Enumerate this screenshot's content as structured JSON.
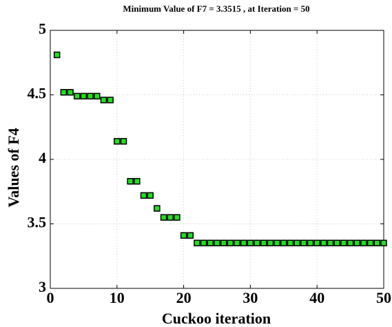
{
  "chart_data": {
    "type": "scatter",
    "title": "Minimum Value of F7 = 3.3515 , at Iteration = 50",
    "x_label": "Cuckoo iteration",
    "y_label": "Values of F4",
    "color": "#22dd22",
    "x": [
      1,
      2,
      3,
      4,
      5,
      6,
      7,
      8,
      9,
      10,
      11,
      12,
      13,
      14,
      15,
      16,
      17,
      18,
      19,
      20,
      21,
      22,
      23,
      24,
      25,
      26,
      27,
      28,
      29,
      30,
      31,
      32,
      33,
      34,
      35,
      36,
      37,
      38,
      39,
      40,
      41,
      42,
      43,
      44,
      45,
      46,
      47,
      48,
      49,
      50
    ],
    "values": [
      4.81,
      4.52,
      4.52,
      4.49,
      4.49,
      4.49,
      4.49,
      4.46,
      4.46,
      4.14,
      4.14,
      3.83,
      3.83,
      3.72,
      3.72,
      3.62,
      3.55,
      3.55,
      3.55,
      3.41,
      3.41,
      3.3515,
      3.3515,
      3.3515,
      3.3515,
      3.3515,
      3.3515,
      3.3515,
      3.3515,
      3.3515,
      3.3515,
      3.3515,
      3.3515,
      3.3515,
      3.3515,
      3.3515,
      3.3515,
      3.3515,
      3.3515,
      3.3515,
      3.3515,
      3.3515,
      3.3515,
      3.3515,
      3.3515,
      3.3515,
      3.3515,
      3.3515,
      3.3515,
      3.3515
    ],
    "xlim": [
      0,
      50
    ],
    "xticks": [
      0,
      10,
      20,
      30,
      40,
      50
    ],
    "ylim": [
      3,
      5
    ],
    "yticks": [
      3,
      3.5,
      4,
      4.5,
      5
    ],
    "grid": true
  }
}
